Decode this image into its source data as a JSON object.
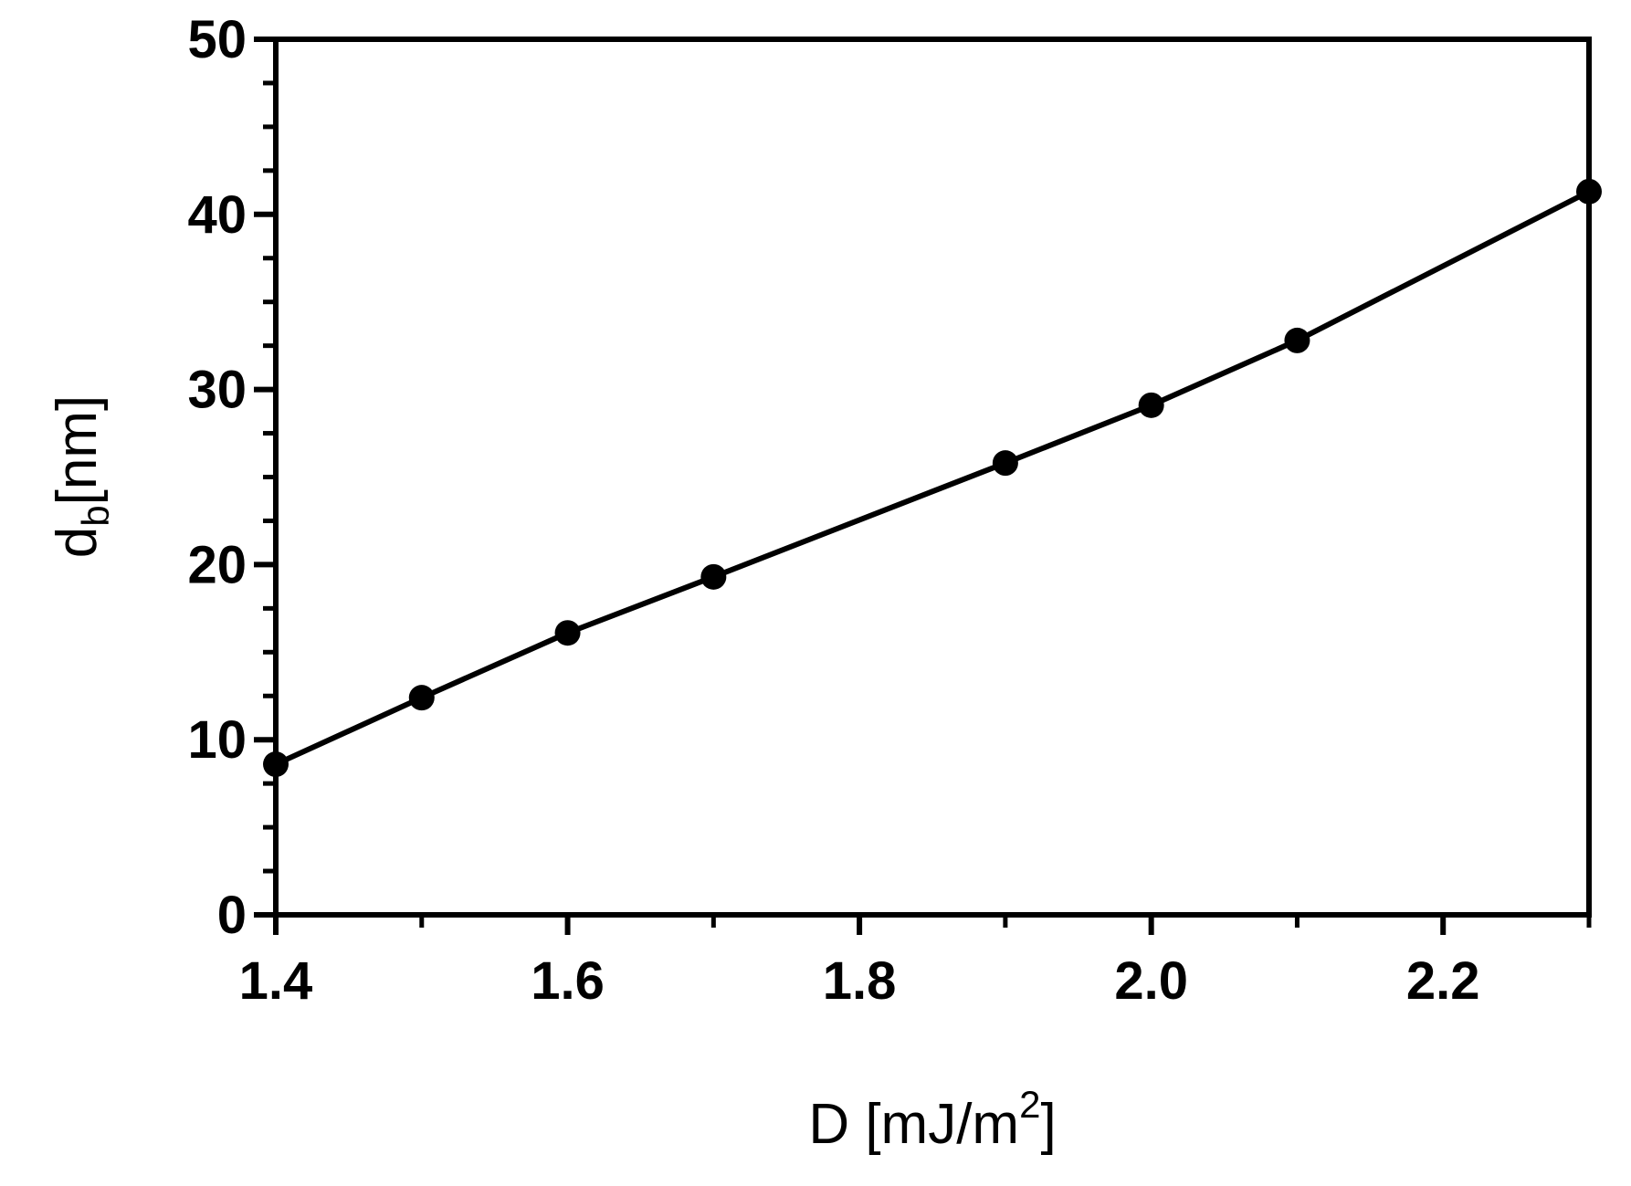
{
  "chart_data": {
    "type": "line",
    "xlabel": {
      "text": "D [mJ/m",
      "sup": "2",
      "end": "]"
    },
    "ylabel": {
      "text": "d",
      "sub": "b",
      "end": "[nm]"
    },
    "x": [
      1.4,
      1.5,
      1.6,
      1.7,
      1.9,
      2.0,
      2.1,
      2.3
    ],
    "series": [
      {
        "color": "#000000",
        "values": [
          8.6,
          12.4,
          16.1,
          19.3,
          25.8,
          29.1,
          32.8,
          41.3
        ]
      }
    ],
    "xlim": [
      1.4,
      2.3
    ],
    "ylim": [
      0,
      50
    ],
    "xticks": [
      1.4,
      1.6,
      1.8,
      {
        "value": 2,
        "label": "2.0"
      },
      2.2
    ],
    "xminorticks": [
      1.5,
      1.7,
      1.9,
      2.1,
      2.3
    ],
    "yticks": [
      0,
      10,
      20,
      30,
      40,
      50
    ],
    "yminorticks": [
      2.5,
      5,
      7.5,
      12.5,
      15,
      17.5,
      22.5,
      25,
      27.5,
      32.5,
      35,
      37.5,
      42.5,
      45,
      47.5
    ]
  }
}
